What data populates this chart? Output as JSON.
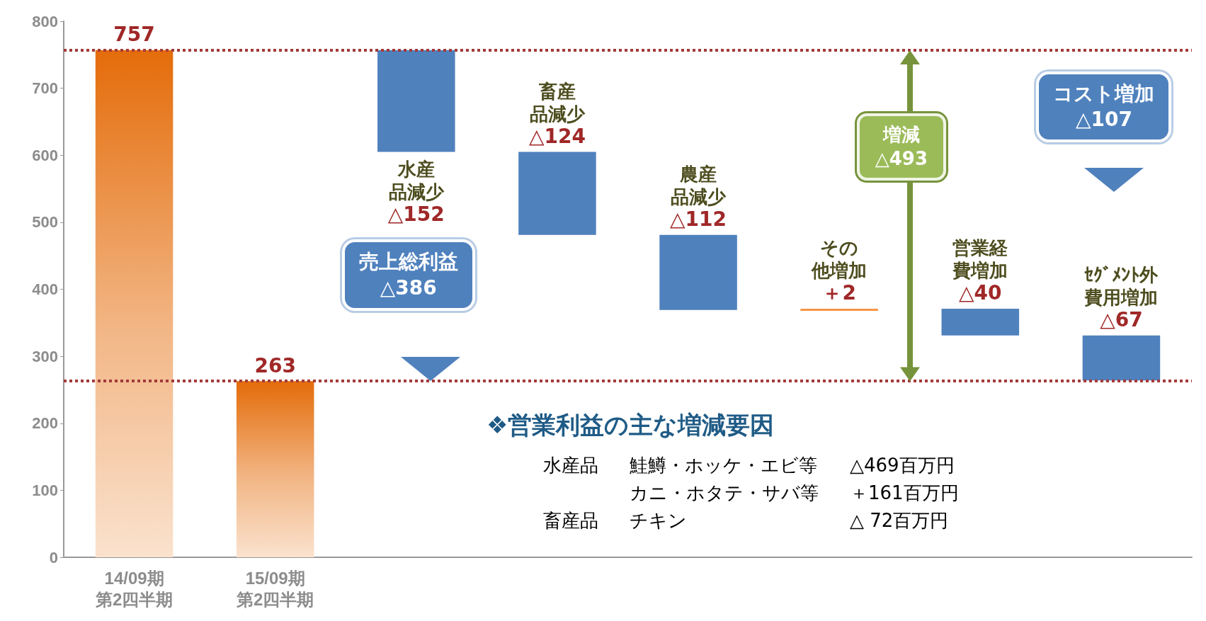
{
  "chart_data": {
    "type": "bar",
    "categories": [
      "14/09期第2四半期",
      "15/09期第2四半期",
      null,
      null,
      null,
      null,
      null,
      null
    ],
    "values": [
      757,
      263,
      -152,
      -124,
      -112,
      2,
      -40,
      -67
    ],
    "base": [
      0,
      0,
      757,
      605,
      481,
      369,
      371,
      331
    ],
    "colors": [
      "#e46c0a",
      "#e46c0a",
      "#4f81bd",
      "#4f81bd",
      "#4f81bd",
      "#f79646",
      "#4f81bd",
      "#4f81bd"
    ],
    "value_labels": [
      "757",
      "263",
      "水産品減少△152",
      "畜産品減少△124",
      "農産品減少△112",
      "その他増加＋2",
      "営業経費増加△40",
      "ｾｸﾞﾒﾝﾄ外費用増加△67"
    ],
    "ylim": [
      0,
      800
    ],
    "yticks": [
      0,
      100,
      200,
      300,
      400,
      500,
      600,
      700,
      800
    ],
    "ref_lines": [
      {
        "axis": "y",
        "value": 757,
        "color": "#a33a3a",
        "line_style": "dotted"
      },
      {
        "axis": "y",
        "value": 263,
        "color": "#a33a3a",
        "line_style": "dotted"
      }
    ],
    "annotations": [
      "売上総利益\n△386",
      "増減\n△493",
      "コスト増加\n△107",
      "❖営業利益の主な増減要因",
      "水産品",
      "鮭鱒・ホッケ・エビ等",
      "△469百万円",
      "カニ・ホタテ・サバ等",
      "＋161百万円",
      "畜産品",
      "チキン",
      "△ 72百万円"
    ]
  }
}
